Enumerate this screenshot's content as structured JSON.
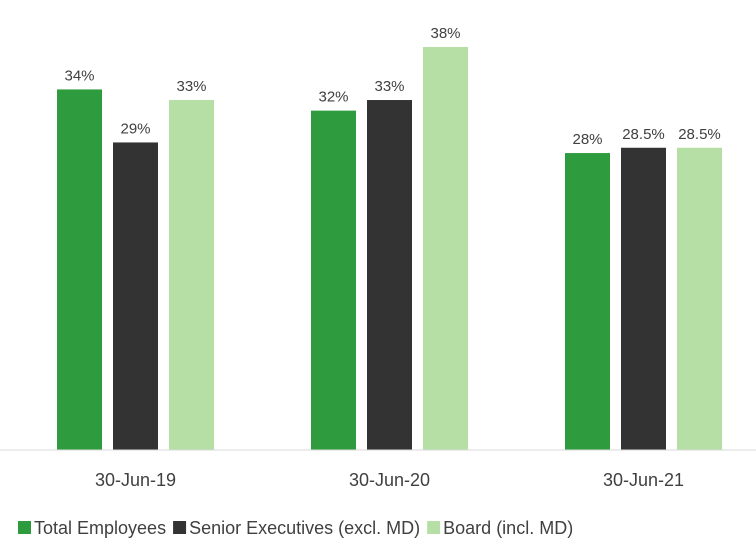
{
  "chart_data": {
    "type": "bar",
    "categories": [
      "30-Jun-19",
      "30-Jun-20",
      "30-Jun-21"
    ],
    "series": [
      {
        "name": "Total Employees",
        "color": "#2e9c3e",
        "values": [
          34,
          32,
          28
        ],
        "labels": [
          "34%",
          "32%",
          "28%"
        ]
      },
      {
        "name": "Senior Executives (excl. MD)",
        "color": "#333333",
        "values": [
          29,
          33,
          28.5
        ],
        "labels": [
          "29%",
          "33%",
          "28.5%"
        ]
      },
      {
        "name": "Board (incl. MD)",
        "color": "#b5dfa4",
        "values": [
          33,
          38,
          28.5
        ],
        "labels": [
          "33%",
          "38%",
          "28.5%"
        ]
      }
    ],
    "ylim": [
      0,
      38
    ],
    "grid": false,
    "legend": "bottom"
  }
}
